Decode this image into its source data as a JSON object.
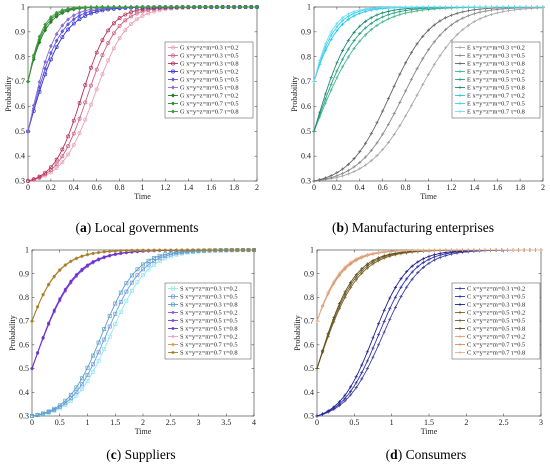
{
  "chart_data": [
    {
      "type": "line",
      "letter": "a",
      "caption": "Local governments",
      "xlabel": "Time",
      "ylabel": "Probability",
      "xlim": [
        0,
        2
      ],
      "ylim": [
        0.3,
        1
      ],
      "xticks": [
        "0",
        "0.2",
        "0.4",
        "0.6",
        "0.8",
        "1",
        "1.2",
        "1.4",
        "1.6",
        "1.8",
        "2"
      ],
      "yticks": [
        "0.3",
        "0.4",
        "0.5",
        "0.6",
        "0.7",
        "0.8",
        "0.9",
        "1"
      ],
      "legend_position": "right",
      "series": [
        {
          "name": "G x=y=z=m=0.3  τ=0.2",
          "color": "#e8a0b4",
          "marker": "circle",
          "y0": 0.3,
          "mid": 0.58,
          "k": 7.0
        },
        {
          "name": "G x=y=z=m=0.3  τ=0.5",
          "color": "#d06080",
          "marker": "circle",
          "y0": 0.3,
          "mid": 0.52,
          "k": 7.6
        },
        {
          "name": "G x=y=z=m=0.3  τ=0.8",
          "color": "#b8305a",
          "marker": "circle",
          "y0": 0.3,
          "mid": 0.47,
          "k": 8.2
        },
        {
          "name": "G x=y=z=m=0.5  τ=0.2",
          "color": "#3030e0",
          "marker": "circle",
          "y0": 0.5,
          "mid": 0.0,
          "k": 6.6
        },
        {
          "name": "G x=y=z=m=0.5  τ=0.5",
          "color": "#5a58d8",
          "marker": "diamond",
          "y0": 0.5,
          "mid": 0.0,
          "k": 7.4
        },
        {
          "name": "G x=y=z=m=0.5  τ=0.8",
          "color": "#8a6ad8",
          "marker": "diamond",
          "y0": 0.5,
          "mid": 0.0,
          "k": 8.4
        },
        {
          "name": "G x=y=z=m=0.7  τ=0.2",
          "color": "#1f7a1f",
          "marker": "diamond",
          "y0": 0.7,
          "mid": 0.0,
          "k": 9.5
        },
        {
          "name": "G x=y=z=m=0.7  τ=0.5",
          "color": "#2e8b2e",
          "marker": "diamond",
          "y0": 0.7,
          "mid": 0.0,
          "k": 10.5
        },
        {
          "name": "G x=y=z=m=0.7  τ=0.8",
          "color": "#3f9a3f",
          "marker": "diamond",
          "y0": 0.7,
          "mid": 0.0,
          "k": 11.5
        }
      ]
    },
    {
      "type": "line",
      "letter": "b",
      "caption": "Manufacturing enterprises",
      "xlabel": "Time",
      "ylabel": "Probability",
      "xlim": [
        0,
        2
      ],
      "ylim": [
        0.3,
        1
      ],
      "xticks": [
        "0",
        "0.2",
        "0.4",
        "0.6",
        "0.8",
        "1",
        "1.2",
        "1.4",
        "1.6",
        "1.8",
        "2"
      ],
      "yticks": [
        "0.3",
        "0.4",
        "0.5",
        "0.6",
        "0.7",
        "0.8",
        "0.9",
        "1"
      ],
      "legend_position": "right",
      "series": [
        {
          "name": "E x=y=z=m=0.3  τ=0.2",
          "color": "#a8a8a8",
          "marker": "plus",
          "y0": 0.3,
          "mid": 0.9,
          "k": 4.8
        },
        {
          "name": "E x=y=z=m=0.3  τ=0.5",
          "color": "#888888",
          "marker": "plus",
          "y0": 0.3,
          "mid": 0.78,
          "k": 5.2
        },
        {
          "name": "E x=y=z=m=0.3  τ=0.8",
          "color": "#666666",
          "marker": "plus",
          "y0": 0.3,
          "mid": 0.66,
          "k": 5.6
        },
        {
          "name": "E x=y=z=m=0.5  τ=0.2",
          "color": "#3fb890",
          "marker": "plus",
          "y0": 0.5,
          "mid": 0.0,
          "k": 4.6
        },
        {
          "name": "E x=y=z=m=0.5  τ=0.5",
          "color": "#28a080",
          "marker": "plus",
          "y0": 0.5,
          "mid": 0.0,
          "k": 5.3
        },
        {
          "name": "E x=y=z=m=0.5  τ=0.8",
          "color": "#1e8a6e",
          "marker": "plus",
          "y0": 0.5,
          "mid": 0.0,
          "k": 6.2
        },
        {
          "name": "E x=y=z=m=0.7  τ=0.2",
          "color": "#20c8e8",
          "marker": "plus",
          "y0": 0.7,
          "mid": 0.0,
          "k": 7.0
        },
        {
          "name": "E x=y=z=m=0.7  τ=0.5",
          "color": "#40d0f0",
          "marker": "plus",
          "y0": 0.7,
          "mid": 0.0,
          "k": 8.0
        },
        {
          "name": "E x=y=z=m=0.7  τ=0.8",
          "color": "#70dcf4",
          "marker": "plus",
          "y0": 0.7,
          "mid": 0.0,
          "k": 9.0
        }
      ]
    },
    {
      "type": "line",
      "letter": "c",
      "caption": "Suppliers",
      "xlabel": "Time",
      "ylabel": "Probability",
      "xlim": [
        0,
        4
      ],
      "ylim": [
        0.3,
        1
      ],
      "xticks": [
        "0",
        "0.5",
        "1",
        "1.5",
        "2",
        "2.5",
        "3",
        "3.5",
        "4"
      ],
      "yticks": [
        "0.3",
        "0.4",
        "0.5",
        "0.6",
        "0.7",
        "0.8",
        "0.9",
        "1"
      ],
      "legend_position": "right",
      "series": [
        {
          "name": "S x=y=z=m=0.3  τ=0.2",
          "color": "#90e8f0",
          "marker": "square",
          "y0": 0.3,
          "mid": 1.42,
          "k": 3.0
        },
        {
          "name": "S x=y=z=m=0.3  τ=0.5",
          "color": "#7098e0",
          "marker": "square",
          "y0": 0.3,
          "mid": 1.34,
          "k": 3.1
        },
        {
          "name": "S x=y=z=m=0.3  τ=0.8",
          "color": "#5aa0c8",
          "marker": "square",
          "y0": 0.3,
          "mid": 1.26,
          "k": 3.2
        },
        {
          "name": "S x=y=z=m=0.5  τ=0.2",
          "color": "#8a50e0",
          "marker": "star",
          "y0": 0.5,
          "mid": 0.0,
          "k": 2.6
        },
        {
          "name": "S x=y=z=m=0.5  τ=0.5",
          "color": "#7a40d8",
          "marker": "star",
          "y0": 0.5,
          "mid": 0.0,
          "k": 2.65
        },
        {
          "name": "S x=y=z=m=0.5  τ=0.8",
          "color": "#6a30c8",
          "marker": "star",
          "y0": 0.5,
          "mid": 0.0,
          "k": 2.7
        },
        {
          "name": "S x=y=z=m=0.7  τ=0.2",
          "color": "#f0a0c0",
          "marker": "star",
          "y0": 0.7,
          "mid": 0.0,
          "k": 3.0
        },
        {
          "name": "S x=y=z=m=0.7  τ=0.5",
          "color": "#c8a040",
          "marker": "star",
          "y0": 0.7,
          "mid": 0.0,
          "k": 3.05
        },
        {
          "name": "S x=y=z=m=0.7  τ=0.8",
          "color": "#a08020",
          "marker": "star",
          "y0": 0.7,
          "mid": 0.0,
          "k": 3.1
        }
      ]
    },
    {
      "type": "line",
      "letter": "d",
      "caption": "Consumers",
      "xlabel": "Time",
      "ylabel": "Probability",
      "xlim": [
        0,
        3
      ],
      "ylim": [
        0.3,
        1
      ],
      "xticks": [
        "0",
        "0.5",
        "1",
        "1.5",
        "2",
        "2.5",
        "3"
      ],
      "yticks": [
        "0.3",
        "0.4",
        "0.5",
        "0.6",
        "0.7",
        "0.8",
        "0.9",
        "1"
      ],
      "legend_position": "right",
      "series": [
        {
          "name": "C x=y=z=m=0.3  τ=0.2",
          "color": "#4040a0",
          "marker": "plus",
          "y0": 0.3,
          "mid": 0.88,
          "k": 4.0
        },
        {
          "name": "C x=y=z=m=0.3  τ=0.5",
          "color": "#3030b0",
          "marker": "plus",
          "y0": 0.3,
          "mid": 0.82,
          "k": 4.2
        },
        {
          "name": "C x=y=z=m=0.3  τ=0.8",
          "color": "#202090",
          "marker": "plus",
          "y0": 0.3,
          "mid": 0.76,
          "k": 4.4
        },
        {
          "name": "C x=y=z=m=0.5  τ=0.2",
          "color": "#806020",
          "marker": "plus",
          "y0": 0.5,
          "mid": 0.0,
          "k": 3.7
        },
        {
          "name": "C x=y=z=m=0.5  τ=0.5",
          "color": "#706030",
          "marker": "plus",
          "y0": 0.5,
          "mid": 0.0,
          "k": 3.9
        },
        {
          "name": "C x=y=z=m=0.5  τ=0.8",
          "color": "#5a5020",
          "marker": "plus",
          "y0": 0.5,
          "mid": 0.0,
          "k": 4.1
        },
        {
          "name": "C x=y=z=m=0.7  τ=0.2",
          "color": "#e8a070",
          "marker": "plus",
          "y0": 0.7,
          "mid": 0.0,
          "k": 4.2
        },
        {
          "name": "C x=y=z=m=0.7  τ=0.5",
          "color": "#d89060",
          "marker": "plus",
          "y0": 0.7,
          "mid": 0.0,
          "k": 4.4
        },
        {
          "name": "C x=y=z=m=0.7  τ=0.8",
          "color": "#e0b090",
          "marker": "plus",
          "y0": 0.7,
          "mid": 0.0,
          "k": 4.6
        }
      ]
    }
  ]
}
